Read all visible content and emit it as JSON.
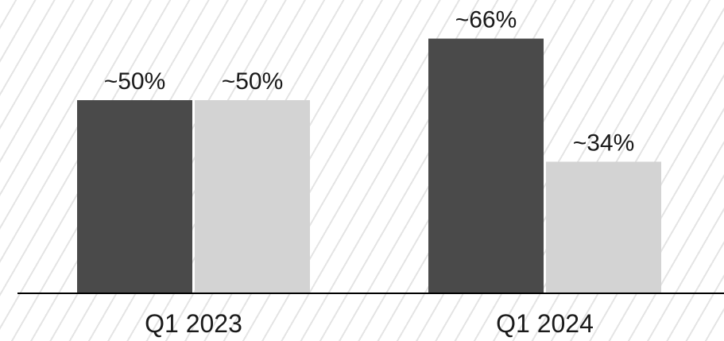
{
  "chart_data": {
    "type": "bar",
    "categories": [
      "Q1 2023",
      "Q1 2024"
    ],
    "series": [
      {
        "values": [
          50,
          66
        ],
        "labels": [
          "~50%",
          "~66%"
        ],
        "color": "#4a4a4a"
      },
      {
        "values": [
          50,
          34
        ],
        "labels": [
          "~50%",
          "~34%"
        ],
        "color": "#d3d3d3"
      }
    ],
    "ylim": [
      0,
      100
    ],
    "grid": false,
    "legend": "none",
    "title": "",
    "xlabel": "",
    "ylabel": "",
    "baseline_color": "#000000",
    "background_pattern": "diagonal-stripes"
  }
}
